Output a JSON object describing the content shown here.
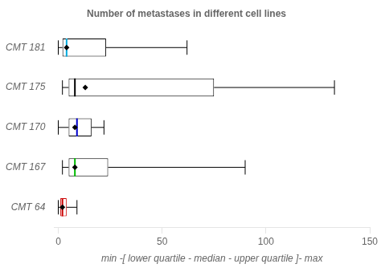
{
  "chart_data": {
    "type": "box",
    "title": "Number of metastases in different cell lines",
    "xlabel": "min -[ lower quartile - median - upper quartile ]- max",
    "orientation": "horizontal",
    "categories": [
      "CMT 64",
      "CMT 167",
      "CMT 170",
      "CMT 175",
      "CMT 181"
    ],
    "boxes": [
      {
        "min": 0,
        "q1": 1,
        "median": 2,
        "q3": 4,
        "max": 9,
        "mean": 2,
        "color": "#cc0000",
        "median_color": "#cc0000"
      },
      {
        "min": 2,
        "q1": 5,
        "median": 8,
        "q3": 24,
        "max": 90,
        "mean": 8,
        "color": "#000000",
        "median_color": "#00bb00"
      },
      {
        "min": 0,
        "q1": 5,
        "median": 9,
        "q3": 16,
        "max": 22,
        "mean": 8,
        "color": "#000000",
        "median_color": "#0000cc"
      },
      {
        "min": 2,
        "q1": 5,
        "median": 8,
        "q3": 75,
        "max": 133,
        "mean": 13,
        "color": "#000000",
        "median_color": "#000000"
      },
      {
        "min": 0,
        "q1": 2,
        "median": 4,
        "q3": 23,
        "max": 62,
        "mean": 4,
        "color": "#000000",
        "median_color": "#00aadd"
      }
    ],
    "xlim": [
      -2,
      150
    ],
    "xticks": [
      0,
      50,
      100,
      150
    ],
    "grid": false
  }
}
